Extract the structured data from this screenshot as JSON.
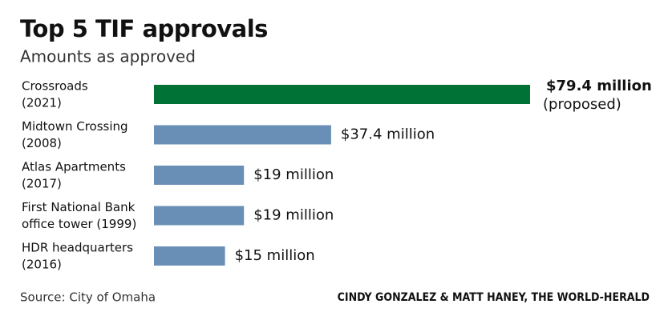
{
  "chart_data": {
    "type": "bar",
    "orientation": "horizontal",
    "title": "Top 5 TIF approvals",
    "subtitle": "Amounts as approved",
    "categories": [
      [
        "Crossroads",
        "(2021)"
      ],
      [
        "Midtown Crossing",
        "(2008)"
      ],
      [
        "Atlas Apartments",
        "(2017)"
      ],
      [
        "First National Bank",
        "office tower (1999)"
      ],
      [
        "HDR headquarters",
        "(2016)"
      ]
    ],
    "values": [
      79.4,
      37.4,
      19,
      19,
      15
    ],
    "value_labels": [
      "$79.4 million",
      "$37.4 million",
      "$19 million",
      "$19 million",
      "$15 million"
    ],
    "colors": [
      "#007236",
      "#6a8fb6",
      "#6a8fb6",
      "#6a8fb6",
      "#6a8fb6"
    ],
    "note": "(proposed)",
    "source": "Source: City of Omaha",
    "credit": "CINDY GONZALEZ & MATT HANEY, THE WORLD-HERALD"
  }
}
